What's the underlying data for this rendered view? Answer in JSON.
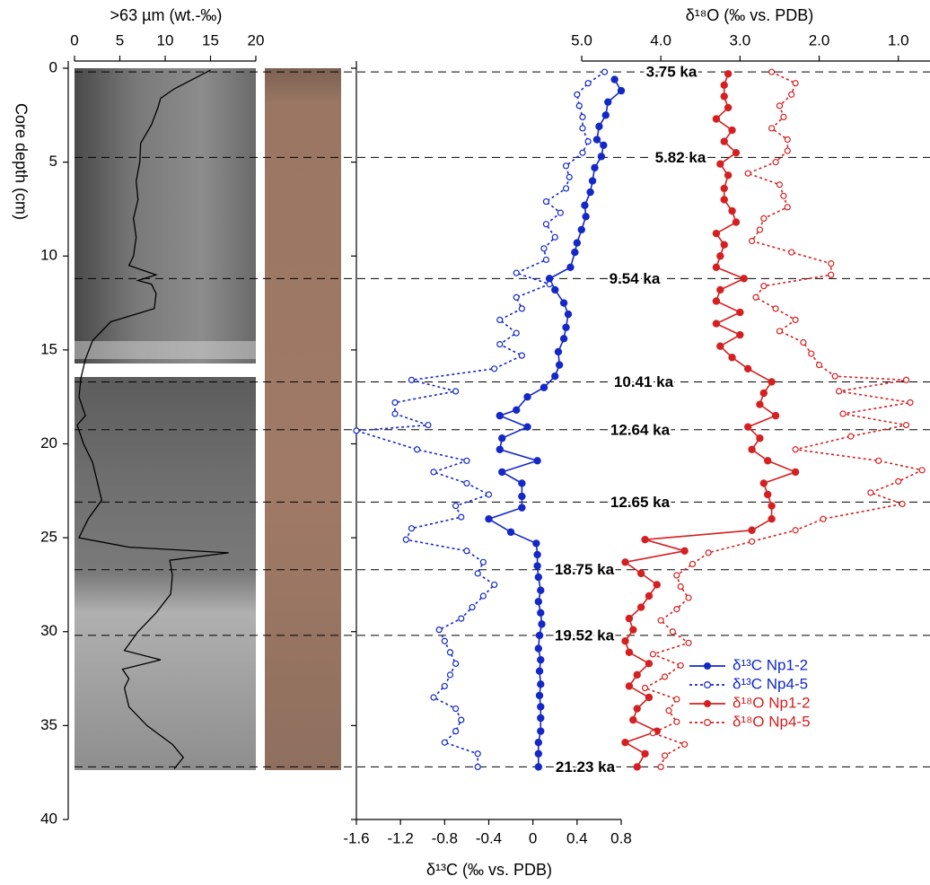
{
  "chart_data": [
    {
      "type": "line",
      "title": ">63 µm (wt.-‰)",
      "ylabel": "Core depth (cm)",
      "ylim": [
        0,
        40
      ],
      "yticks": [
        0,
        5,
        10,
        15,
        20,
        25,
        30,
        35,
        40
      ],
      "xlim": [
        0,
        20
      ],
      "xticks": [
        0,
        5,
        10,
        15,
        20
      ],
      "series": [
        {
          "color": "#000000",
          "marker": "none",
          "dash": false,
          "depth": [
            0.1,
            0.6,
            1.1,
            1.6,
            2.1,
            3,
            4,
            5,
            6,
            7,
            8,
            9,
            10,
            10.5,
            11,
            11.3,
            11.5,
            12,
            12.8,
            13.5,
            14.5,
            15.5,
            16.5,
            17.5,
            18.5,
            19,
            20,
            21,
            22,
            23,
            24,
            25,
            25.5,
            25.8,
            26.2,
            27,
            28,
            29,
            30,
            31,
            31.5,
            32,
            32.5,
            33,
            34,
            35,
            36,
            36.7,
            37.3
          ],
          "values": [
            15,
            13,
            11,
            9.5,
            9.2,
            8.5,
            7.3,
            7.2,
            6.8,
            7,
            6.5,
            6.8,
            6.5,
            6,
            9,
            7,
            8.5,
            9,
            8.8,
            4,
            2,
            1.2,
            0.7,
            0.5,
            1.2,
            0.3,
            1,
            2,
            2.5,
            3,
            1.5,
            0.5,
            6,
            17,
            10.5,
            10.8,
            10.6,
            9,
            7,
            5.5,
            9.5,
            5.3,
            6,
            5.5,
            6,
            8,
            10.8,
            12,
            11
          ]
        }
      ]
    },
    {
      "type": "line",
      "xlabel": "δ¹³C (‰ vs. PDB)",
      "ylim": [
        0,
        40
      ],
      "xlim": [
        -1.6,
        0.8
      ],
      "xticks": [
        -1.6,
        -1.2,
        -0.8,
        -0.4,
        0,
        0.4,
        0.8
      ],
      "series": [
        {
          "name": "δ¹³C Np1-2",
          "color": "#1428c8",
          "marker": "filled",
          "dash": false,
          "depth": [
            0.6,
            1.2,
            1.8,
            2.5,
            3.1,
            3.8,
            4.1,
            4.7,
            5.3,
            6.0,
            6.6,
            7.3,
            7.9,
            8.6,
            9.3,
            9.8,
            10.6,
            11.2,
            11.8,
            12.5,
            13.1,
            13.8,
            14.4,
            15.1,
            15.8,
            16.4,
            17.0,
            17.5,
            18.2,
            18.5,
            19.1,
            19.7,
            20.3,
            20.9,
            21.5,
            22.1,
            22.8,
            23.4,
            24.0,
            24.7,
            25.3,
            25.9,
            26.5,
            27.1,
            27.8,
            28.4,
            29.0,
            29.6,
            30.2,
            30.9,
            31.5,
            32.1,
            32.8,
            33.4,
            34.0,
            34.6,
            35.3,
            35.9,
            36.5,
            37.2
          ],
          "values": [
            0.74,
            0.8,
            0.68,
            0.66,
            0.6,
            0.58,
            0.64,
            0.62,
            0.56,
            0.54,
            0.52,
            0.47,
            0.48,
            0.44,
            0.4,
            0.38,
            0.34,
            0.15,
            0.2,
            0.28,
            0.32,
            0.3,
            0.28,
            0.23,
            0.24,
            0.2,
            0.1,
            -0.05,
            -0.15,
            -0.3,
            -0.05,
            -0.28,
            -0.3,
            0.04,
            -0.28,
            -0.1,
            -0.1,
            -0.1,
            -0.4,
            -0.2,
            0.03,
            0.04,
            0.04,
            0.05,
            0.07,
            0.05,
            0.07,
            0.08,
            0.06,
            0.05,
            0.07,
            0.06,
            0.07,
            0.06,
            0.07,
            0.07,
            0.07,
            0.05,
            0.05,
            0.05
          ]
        },
        {
          "name": "δ¹³C Np4-5",
          "color": "#1428c8",
          "marker": "open",
          "dash": true,
          "depth": [
            0.2,
            0.8,
            1.4,
            2.0,
            2.6,
            3.2,
            3.9,
            4.5,
            5.2,
            5.8,
            6.4,
            7.1,
            7.7,
            8.3,
            9.0,
            9.6,
            10.2,
            10.9,
            11.5,
            12.2,
            12.8,
            13.4,
            14.1,
            14.7,
            15.3,
            16.0,
            16.6,
            17.2,
            17.8,
            18.4,
            19.0,
            19.3,
            20.3,
            20.9,
            21.5,
            22.1,
            22.7,
            23.3,
            23.9,
            24.5,
            25.1,
            25.7,
            26.3,
            26.9,
            27.5,
            28.1,
            28.7,
            29.3,
            29.9,
            30.5,
            31.1,
            31.7,
            32.3,
            32.9,
            33.5,
            34.1,
            34.7,
            35.3,
            35.9,
            36.5,
            37.2
          ],
          "values": [
            0.65,
            0.5,
            0.4,
            0.42,
            0.45,
            0.45,
            0.5,
            0.45,
            0.3,
            0.33,
            0.3,
            0.12,
            0.25,
            0.12,
            0.2,
            0.1,
            0.12,
            -0.15,
            0.15,
            -0.15,
            -0.1,
            -0.3,
            -0.15,
            -0.3,
            -0.1,
            -0.35,
            -1.1,
            -0.7,
            -1.25,
            -1.25,
            -0.95,
            -1.6,
            -1.05,
            -0.6,
            -0.9,
            -0.6,
            -0.4,
            -0.7,
            -0.65,
            -1.1,
            -1.15,
            -0.6,
            -0.45,
            -0.5,
            -0.35,
            -0.45,
            -0.55,
            -0.65,
            -0.85,
            -0.8,
            -0.75,
            -0.7,
            -0.75,
            -0.8,
            -0.9,
            -0.7,
            -0.65,
            -0.7,
            -0.8,
            -0.5,
            -0.5
          ]
        }
      ]
    },
    {
      "type": "line",
      "title": "δ¹⁸O (‰ vs. PDB)",
      "ylim": [
        0,
        40
      ],
      "xlim": [
        5.0,
        0.6
      ],
      "xticks": [
        {
          "value": 5,
          "label": "5.0"
        },
        {
          "value": 4,
          "label": "4.0"
        },
        {
          "value": 3,
          "label": "3.0"
        },
        {
          "value": 2,
          "label": "2.0"
        },
        {
          "value": 1,
          "label": "1.0"
        }
      ],
      "series": [
        {
          "name": "δ¹⁸O Np1-2",
          "color": "#d42020",
          "marker": "filled",
          "dash": false,
          "depth": [
            0.3,
            0.9,
            1.5,
            2.1,
            2.7,
            3.3,
            3.9,
            4.5,
            5.1,
            5.7,
            6.4,
            7.0,
            7.6,
            8.2,
            8.8,
            9.4,
            10.0,
            10.6,
            11.2,
            11.8,
            12.4,
            13.0,
            13.6,
            14.2,
            14.8,
            15.4,
            16.0,
            16.7,
            17.3,
            17.9,
            18.5,
            19.1,
            19.7,
            20.3,
            20.9,
            21.5,
            22.1,
            22.7,
            23.3,
            24.0,
            24.6,
            25.1,
            25.7,
            26.3,
            26.9,
            27.5,
            28.1,
            28.7,
            29.3,
            29.9,
            30.5,
            31.1,
            31.7,
            32.3,
            32.9,
            33.5,
            34.1,
            34.7,
            35.3,
            35.9,
            36.5,
            37.2
          ],
          "values": [
            3.15,
            3.2,
            3.2,
            3.15,
            3.3,
            3.1,
            3.2,
            3.05,
            3.25,
            3.15,
            3.2,
            3.2,
            3.1,
            3.05,
            3.3,
            3.2,
            3.25,
            3.3,
            2.95,
            3.25,
            3.3,
            3.0,
            3.3,
            3.0,
            3.25,
            3.1,
            2.9,
            2.6,
            2.7,
            2.75,
            2.55,
            2.9,
            2.75,
            2.85,
            2.65,
            2.3,
            2.7,
            2.65,
            2.6,
            2.6,
            2.85,
            4.2,
            3.7,
            4.45,
            4.25,
            4.05,
            4.15,
            4.25,
            4.4,
            4.35,
            4.45,
            4.4,
            4.15,
            4.3,
            4.4,
            4.15,
            4.3,
            4.35,
            4.05,
            4.45,
            4.2,
            4.3
          ]
        },
        {
          "name": "δ¹⁸O Np4-5",
          "color": "#d42020",
          "marker": "open",
          "dash": true,
          "depth": [
            0.2,
            0.8,
            1.4,
            2.0,
            2.6,
            3.2,
            3.8,
            4.4,
            5.0,
            5.6,
            6.2,
            6.8,
            7.4,
            8.0,
            8.6,
            9.2,
            9.8,
            10.4,
            11.0,
            11.6,
            12.2,
            12.8,
            13.4,
            14.0,
            14.6,
            15.2,
            15.8,
            16.4,
            16.6,
            17.2,
            17.8,
            18.4,
            19.0,
            19.6,
            20.3,
            20.9,
            21.4,
            22.0,
            22.6,
            23.2,
            24.0,
            24.6,
            25.2,
            25.8,
            26.4,
            27.0,
            27.6,
            28.2,
            28.8,
            29.4,
            30.0,
            30.6,
            31.2,
            31.8,
            32.4,
            33.0,
            33.6,
            34.2,
            34.8,
            35.4,
            36.0,
            36.6,
            37.2
          ],
          "values": [
            2.6,
            2.3,
            2.35,
            2.5,
            2.45,
            2.6,
            2.4,
            2.4,
            2.55,
            2.9,
            2.5,
            2.45,
            2.4,
            2.7,
            2.75,
            2.85,
            2.35,
            1.85,
            1.85,
            2.7,
            2.8,
            2.55,
            2.3,
            2.5,
            2.2,
            2.1,
            2.0,
            1.8,
            0.9,
            1.75,
            0.85,
            1.7,
            0.9,
            1.6,
            2.3,
            1.25,
            0.7,
            1.0,
            1.35,
            0.95,
            1.95,
            2.3,
            2.85,
            3.4,
            3.6,
            3.8,
            3.75,
            3.65,
            3.8,
            4.0,
            3.85,
            3.65,
            4.1,
            3.75,
            3.95,
            4.2,
            3.8,
            3.9,
            3.8,
            4.1,
            3.7,
            3.95,
            4.0
          ]
        }
      ],
      "age_lines": [
        {
          "depth": 0.2,
          "label": "3.75 ka"
        },
        {
          "depth": 4.75,
          "label": "5.82 ka"
        },
        {
          "depth": 11.2,
          "label": "9.54 ka"
        },
        {
          "depth": 16.7,
          "label": "10.41 ka"
        },
        {
          "depth": 19.25,
          "label": "12.64 ka"
        },
        {
          "depth": 23.1,
          "label": "12.65 ka"
        },
        {
          "depth": 26.7,
          "label": "18.75 ka"
        },
        {
          "depth": 30.2,
          "label": "19.52 ka"
        },
        {
          "depth": 37.2,
          "label": "21.23 ka"
        }
      ]
    }
  ]
}
